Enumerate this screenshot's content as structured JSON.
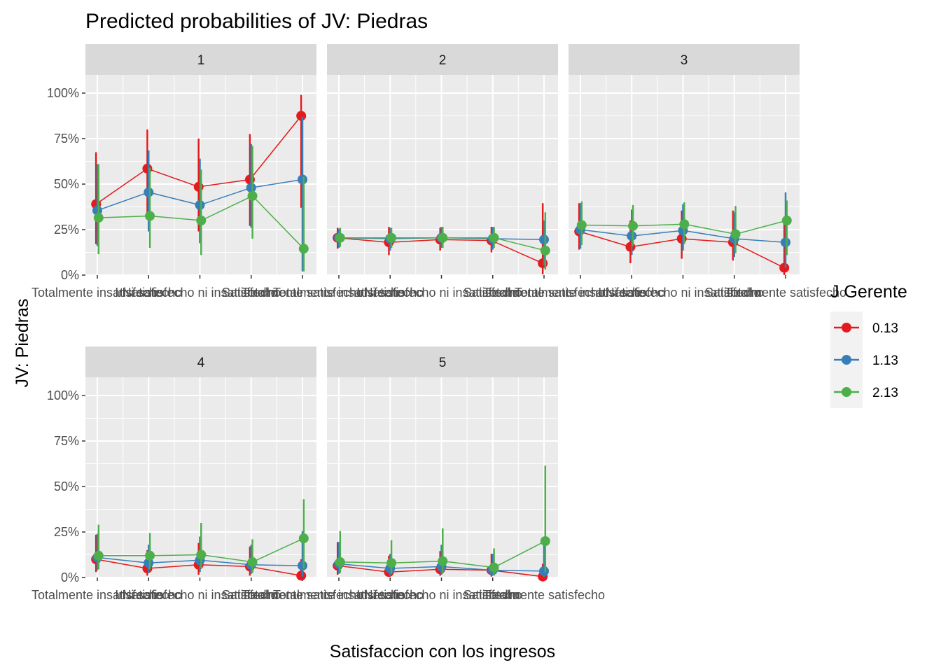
{
  "chart_data": {
    "type": "line",
    "title": "Predicted probabilities of JV: Piedras",
    "xlabel": "Satisfaccion con los ingresos",
    "ylabel": "JV: Piedras",
    "categories": [
      "Totalmente insatisfecho",
      "Insatisfecho",
      "Ni satisfecho ni insatisfecho",
      "Satisfecho",
      "Totalmente satisfecho"
    ],
    "yticks": [
      "0%",
      "25%",
      "50%",
      "75%",
      "100%"
    ],
    "ylim": [
      0,
      1.1
    ],
    "grid": true,
    "legend": {
      "title": "J Gerente",
      "position": "right",
      "items": [
        {
          "label": "0.13",
          "color": "#e41a1c"
        },
        {
          "label": "1.13",
          "color": "#377eb8"
        },
        {
          "label": "2.13",
          "color": "#4daf4a"
        }
      ]
    },
    "panels": [
      {
        "label": "1",
        "series": [
          {
            "name": "0.13",
            "values": [
              0.39,
              0.585,
              0.485,
              0.525,
              0.875
            ],
            "lower": [
              0.17,
              0.32,
              0.24,
              0.27,
              0.37
            ],
            "upper": [
              0.675,
              0.8,
              0.75,
              0.775,
              0.99
            ]
          },
          {
            "name": "1.13",
            "values": [
              0.355,
              0.455,
              0.385,
              0.48,
              0.525
            ],
            "lower": [
              0.16,
              0.24,
              0.175,
              0.26,
              0.02
            ],
            "upper": [
              0.61,
              0.685,
              0.64,
              0.72,
              0.87
            ]
          },
          {
            "name": "2.13",
            "values": [
              0.315,
              0.325,
              0.3,
              0.435,
              0.145
            ],
            "lower": [
              0.115,
              0.15,
              0.11,
              0.2,
              0.02
            ],
            "upper": [
              0.61,
              0.59,
              0.58,
              0.71,
              0.54
            ]
          }
        ]
      },
      {
        "label": "2",
        "series": [
          {
            "name": "0.13",
            "values": [
              0.205,
              0.18,
              0.195,
              0.19,
              0.065
            ],
            "lower": [
              0.145,
              0.11,
              0.135,
              0.125,
              0.005
            ],
            "upper": [
              0.26,
              0.265,
              0.26,
              0.265,
              0.395
            ]
          },
          {
            "name": "1.13",
            "values": [
              0.205,
              0.2,
              0.205,
              0.2,
              0.195
            ],
            "lower": [
              0.15,
              0.135,
              0.15,
              0.14,
              0.055
            ],
            "upper": [
              0.255,
              0.26,
              0.265,
              0.265,
              0.3
            ]
          },
          {
            "name": "2.13",
            "values": [
              0.205,
              0.205,
              0.205,
              0.205,
              0.135
            ],
            "lower": [
              0.155,
              0.15,
              0.15,
              0.15,
              0.03
            ],
            "upper": [
              0.26,
              0.26,
              0.265,
              0.265,
              0.345
            ]
          }
        ]
      },
      {
        "label": "3",
        "series": [
          {
            "name": "0.13",
            "values": [
              0.24,
              0.155,
              0.2,
              0.18,
              0.04
            ],
            "lower": [
              0.14,
              0.065,
              0.09,
              0.08,
              0.0
            ],
            "upper": [
              0.395,
              0.3,
              0.355,
              0.355,
              0.32
            ]
          },
          {
            "name": "1.13",
            "values": [
              0.25,
              0.215,
              0.245,
              0.2,
              0.18
            ],
            "lower": [
              0.145,
              0.11,
              0.135,
              0.1,
              0.04
            ],
            "upper": [
              0.395,
              0.36,
              0.39,
              0.345,
              0.455
            ]
          },
          {
            "name": "2.13",
            "values": [
              0.275,
              0.27,
              0.28,
              0.225,
              0.3
            ],
            "lower": [
              0.165,
              0.16,
              0.17,
              0.12,
              0.11
            ],
            "upper": [
              0.405,
              0.385,
              0.4,
              0.38,
              0.41
            ]
          }
        ]
      },
      {
        "label": "4",
        "series": [
          {
            "name": "0.13",
            "values": [
              0.1,
              0.05,
              0.07,
              0.06,
              0.01
            ],
            "lower": [
              0.03,
              0.01,
              0.015,
              0.01,
              0.0
            ],
            "upper": [
              0.235,
              0.15,
              0.19,
              0.17,
              0.1
            ]
          },
          {
            "name": "1.13",
            "values": [
              0.11,
              0.08,
              0.095,
              0.07,
              0.065
            ],
            "lower": [
              0.04,
              0.025,
              0.03,
              0.02,
              0.005
            ],
            "upper": [
              0.24,
              0.18,
              0.225,
              0.18,
              0.255
            ]
          },
          {
            "name": "2.13",
            "values": [
              0.12,
              0.12,
              0.125,
              0.085,
              0.215
            ],
            "lower": [
              0.045,
              0.045,
              0.05,
              0.025,
              0.05
            ],
            "upper": [
              0.29,
              0.245,
              0.3,
              0.21,
              0.43
            ]
          }
        ]
      },
      {
        "label": "5",
        "series": [
          {
            "name": "0.13",
            "values": [
              0.065,
              0.03,
              0.045,
              0.04,
              0.005
            ],
            "lower": [
              0.015,
              0.005,
              0.01,
              0.005,
              0.0
            ],
            "upper": [
              0.195,
              0.12,
              0.145,
              0.13,
              0.075
            ]
          },
          {
            "name": "1.13",
            "values": [
              0.075,
              0.05,
              0.06,
              0.04,
              0.035
            ],
            "lower": [
              0.02,
              0.01,
              0.015,
              0.01,
              0.0
            ],
            "upper": [
              0.195,
              0.13,
              0.18,
              0.13,
              0.19
            ]
          },
          {
            "name": "2.13",
            "values": [
              0.085,
              0.08,
              0.09,
              0.055,
              0.2
            ],
            "lower": [
              0.025,
              0.02,
              0.025,
              0.01,
              0.03
            ],
            "upper": [
              0.255,
              0.205,
              0.27,
              0.16,
              0.615
            ]
          }
        ]
      }
    ]
  }
}
